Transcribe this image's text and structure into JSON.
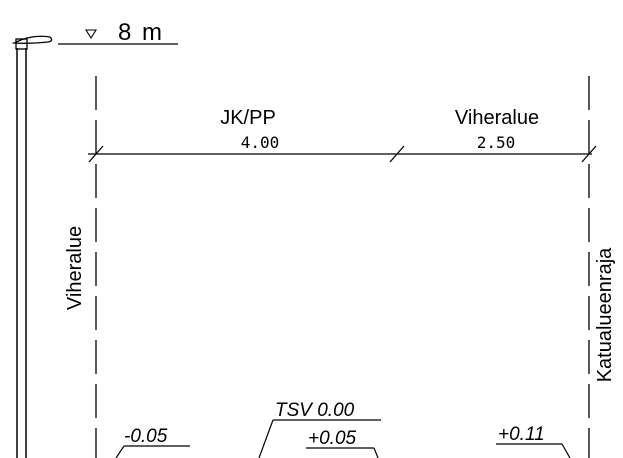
{
  "lamp": {
    "height_label": "8 m"
  },
  "dimensions": [
    {
      "zone": "JK/PP",
      "width": "4.00"
    },
    {
      "zone": "Viheralue",
      "width": "2.50"
    }
  ],
  "side_labels": {
    "left": "Viheralue",
    "right": "Katualueenraja"
  },
  "elevations": {
    "left": "-0.05",
    "tsv": "TSV 0.00",
    "center": "+0.05",
    "right": "+0.11"
  }
}
